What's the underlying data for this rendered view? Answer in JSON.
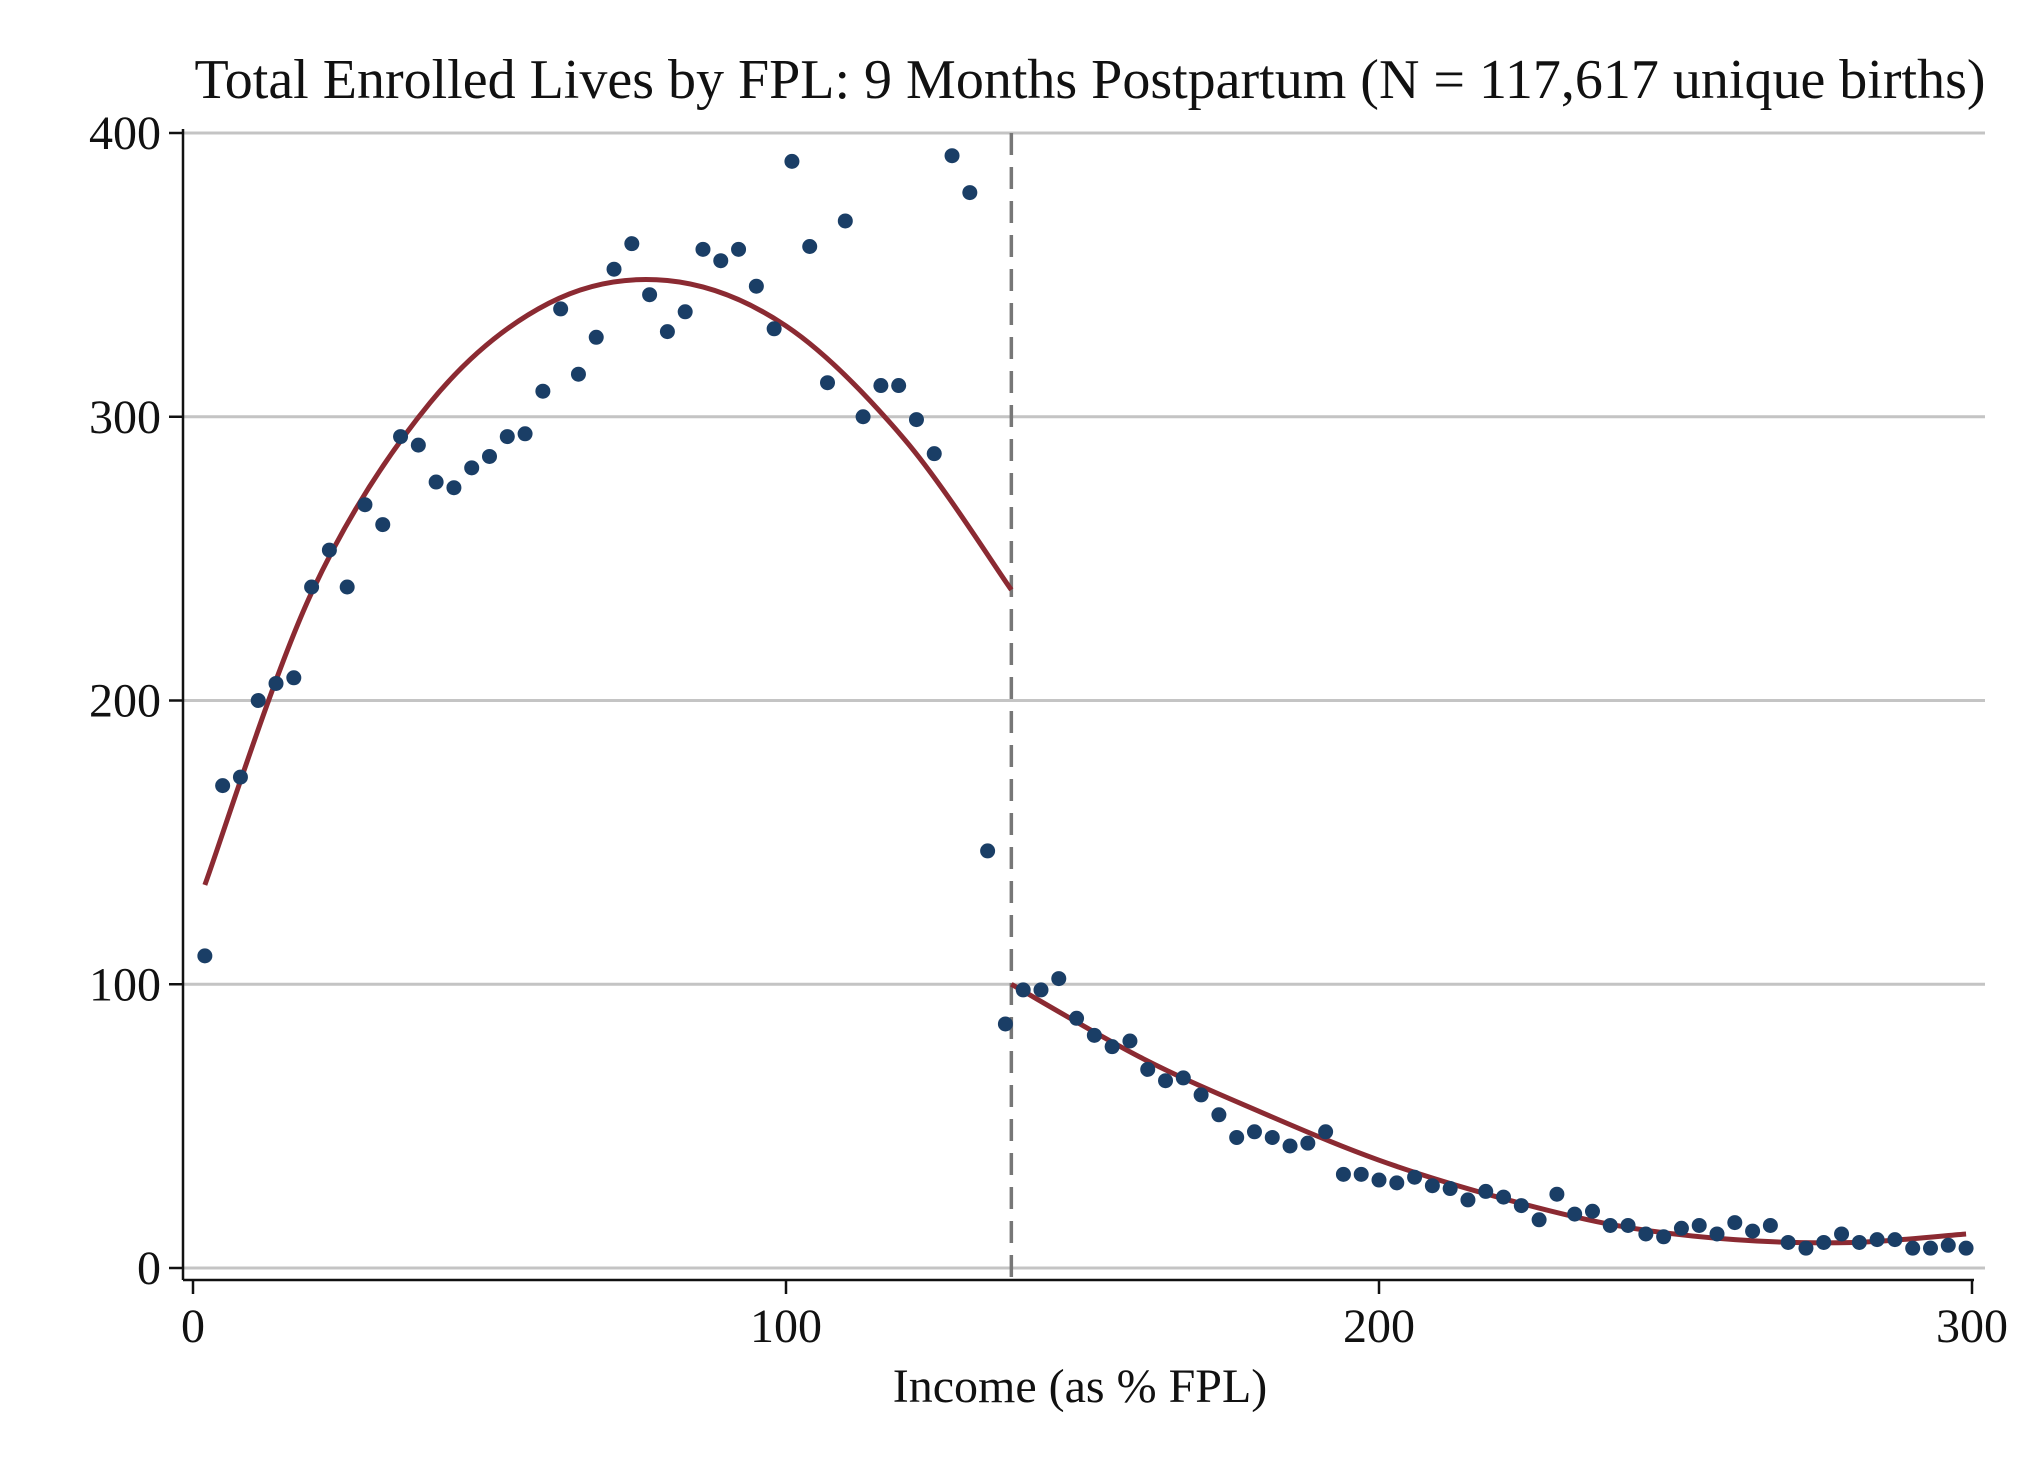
{
  "chart_data": {
    "type": "scatter",
    "title": "Total Enrolled Lives by FPL: 9 Months Postpartum (N = 117,617 unique births)",
    "xlabel": "Income (as % FPL)",
    "ylabel": "",
    "xlim": [
      0,
      300
    ],
    "ylim": [
      0,
      400
    ],
    "xticks": [
      0,
      100,
      200,
      300
    ],
    "yticks": [
      0,
      100,
      200,
      300,
      400
    ],
    "xtick_labels": [
      "0",
      "100",
      "200",
      "300"
    ],
    "ytick_labels": [
      "0",
      "100",
      "200",
      "300",
      "400"
    ],
    "grid": "horizontal",
    "cutoff_x": 138,
    "colors": {
      "points": "#1a3e66",
      "fit": "#8b2a32",
      "grid": "#c4c4c4",
      "cutoff": "#777777",
      "axis": "#111111"
    },
    "series": [
      {
        "kind": "points",
        "x": [
          2,
          5,
          8,
          11,
          14,
          17,
          20,
          23,
          26,
          29,
          32,
          35,
          38,
          41,
          44,
          47,
          50,
          53,
          56,
          59,
          62,
          65,
          68,
          71,
          74,
          77,
          80,
          83,
          86,
          89,
          92,
          95,
          98,
          101,
          104,
          107,
          110,
          113,
          116,
          119,
          122,
          125,
          128,
          131,
          134,
          137,
          140,
          143,
          146,
          149,
          152,
          155,
          158,
          161,
          164,
          167,
          170,
          173,
          176,
          179,
          182,
          185,
          188,
          191,
          194,
          197,
          200,
          203,
          206,
          209,
          212,
          215,
          218,
          221,
          224,
          227,
          230,
          233,
          236,
          239,
          242,
          245,
          248,
          251,
          254,
          257,
          260,
          263,
          266,
          269,
          272,
          275,
          278,
          281,
          284,
          287,
          290,
          293,
          296,
          299
        ],
        "y": [
          110,
          170,
          173,
          200,
          206,
          208,
          240,
          253,
          240,
          269,
          262,
          293,
          290,
          277,
          275,
          282,
          286,
          293,
          294,
          309,
          338,
          315,
          328,
          352,
          361,
          343,
          330,
          337,
          359,
          355,
          359,
          346,
          331,
          390,
          360,
          312,
          369,
          300,
          311,
          311,
          299,
          287,
          392,
          379,
          147,
          86,
          98,
          98,
          102,
          88,
          82,
          78,
          80,
          70,
          66,
          67,
          61,
          54,
          46,
          48,
          46,
          43,
          44,
          48,
          33,
          33,
          31,
          30,
          32,
          29,
          28,
          24,
          27,
          25,
          22,
          17,
          26,
          19,
          20,
          15,
          15,
          12,
          11,
          14,
          15,
          12,
          16,
          13,
          15,
          9,
          7,
          9,
          12,
          9,
          10,
          10,
          7,
          7,
          8,
          7
        ]
      },
      {
        "kind": "fit",
        "x": [
          2,
          20,
          40,
          60,
          80,
          100,
          120,
          138
        ],
        "y": [
          135,
          238,
          305,
          340,
          348,
          332,
          292,
          239
        ]
      },
      {
        "kind": "fit",
        "x": [
          138,
          160,
          180,
          200,
          220,
          240,
          260,
          280,
          299
        ],
        "y": [
          100,
          74,
          55,
          38,
          25,
          15,
          10,
          9,
          12
        ]
      }
    ]
  }
}
